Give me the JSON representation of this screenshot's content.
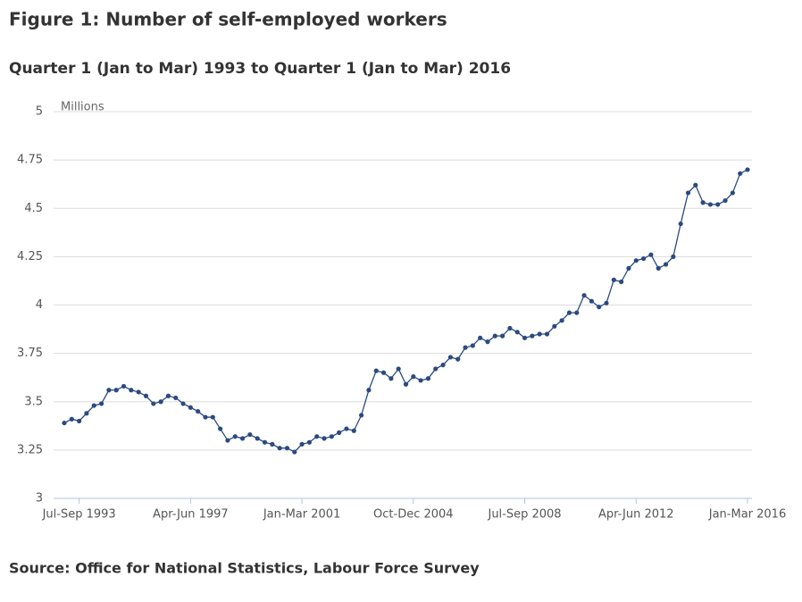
{
  "title": "Figure 1: Number of self-employed workers",
  "subtitle": "Quarter 1 (Jan to Mar) 1993 to Quarter 1 (Jan to Mar) 2016",
  "source": "Source: Office for National Statistics, Labour Force Survey",
  "chart_data": {
    "type": "line",
    "y_label": "Millions",
    "categories": [
      null,
      null,
      "Jul-Sep 1993",
      null,
      null,
      null,
      null,
      null,
      null,
      null,
      null,
      null,
      null,
      null,
      null,
      null,
      null,
      "Apr-Jun 1997",
      null,
      null,
      null,
      null,
      null,
      null,
      null,
      null,
      null,
      null,
      null,
      null,
      null,
      null,
      "Jan-Mar 2001",
      null,
      null,
      null,
      null,
      null,
      null,
      null,
      null,
      null,
      null,
      null,
      null,
      null,
      null,
      "Oct-Dec 2004",
      null,
      null,
      null,
      null,
      null,
      null,
      null,
      null,
      null,
      null,
      null,
      null,
      null,
      null,
      "Jul-Sep 2008",
      null,
      null,
      null,
      null,
      null,
      null,
      null,
      null,
      null,
      null,
      null,
      null,
      null,
      null,
      "Apr-Jun 2012",
      null,
      null,
      null,
      null,
      null,
      null,
      null,
      null,
      null,
      null,
      null,
      null,
      null,
      null,
      "Jan-Mar 2016"
    ],
    "values": [
      3.39,
      3.41,
      3.4,
      3.44,
      3.48,
      3.49,
      3.56,
      3.56,
      3.58,
      3.56,
      3.55,
      3.53,
      3.49,
      3.5,
      3.53,
      3.52,
      3.49,
      3.47,
      3.45,
      3.42,
      3.42,
      3.36,
      3.3,
      3.32,
      3.31,
      3.33,
      3.31,
      3.29,
      3.28,
      3.26,
      3.26,
      3.24,
      3.28,
      3.29,
      3.32,
      3.31,
      3.32,
      3.34,
      3.36,
      3.35,
      3.43,
      3.56,
      3.66,
      3.65,
      3.62,
      3.67,
      3.59,
      3.63,
      3.61,
      3.62,
      3.67,
      3.69,
      3.73,
      3.72,
      3.78,
      3.79,
      3.83,
      3.81,
      3.84,
      3.84,
      3.88,
      3.86,
      3.83,
      3.84,
      3.85,
      3.85,
      3.89,
      3.92,
      3.96,
      3.96,
      4.05,
      4.02,
      3.99,
      4.01,
      4.13,
      4.12,
      4.19,
      4.23,
      4.24,
      4.26,
      4.19,
      4.21,
      4.25,
      4.42,
      4.58,
      4.62,
      4.53,
      4.52,
      4.52,
      4.54,
      4.58,
      4.68,
      4.7
    ],
    "color": "#2b4a80",
    "ylim": [
      3,
      5
    ],
    "yticks": [
      3,
      3.25,
      3.5,
      3.75,
      4,
      4.25,
      4.5,
      4.75,
      5
    ],
    "grid": true
  }
}
